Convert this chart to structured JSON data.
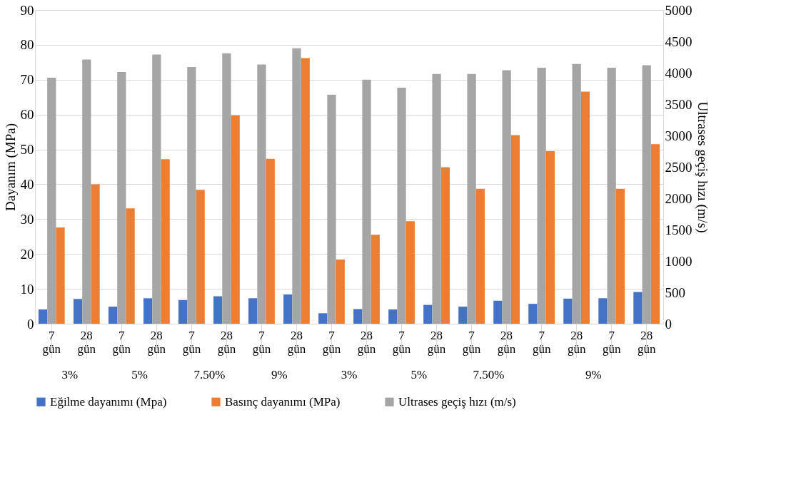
{
  "chart_data": {
    "type": "bar",
    "categories": [
      "7 gün",
      "28 gün",
      "7 gün",
      "28 gün",
      "7 gün",
      "28 gün",
      "7 gün",
      "28 gün",
      "7 gün",
      "28 gün",
      "7 gün",
      "28 gün",
      "7 gün",
      "28 gün",
      "7 gün",
      "28 gün",
      "7 gün",
      "28 gün"
    ],
    "annotations": [
      "3%",
      "5%",
      "7.50%",
      "9%",
      "3%",
      "5%",
      "7.50%",
      "9%"
    ],
    "series": [
      {
        "name": "Eğilme dayanımı (Mpa)",
        "color": "#4472c4",
        "values": [
          4.1,
          7.1,
          4.9,
          7.3,
          6.8,
          7.9,
          7.3,
          8.4,
          3.0,
          4.2,
          4.1,
          5.4,
          4.9,
          6.6,
          5.7,
          7.2,
          7.3,
          9.1
        ]
      },
      {
        "name": "Basınç dayanımı (MPa)",
        "color": "#ed7d31",
        "values": [
          27.6,
          40.0,
          33.1,
          47.2,
          38.4,
          59.8,
          47.3,
          76.2,
          18.4,
          25.5,
          29.4,
          44.9,
          38.7,
          54.1,
          49.5,
          66.6,
          38.7,
          51.5
        ]
      },
      {
        "name": "Ultrases geçiş hızı (m/s)",
        "color": "#a5a5a5",
        "axis": "y2",
        "values": [
          3920,
          4210,
          4010,
          4290,
          4090,
          4310,
          4130,
          4390,
          3650,
          3890,
          3760,
          3980,
          3980,
          4040,
          4080,
          4140,
          4080,
          4120
        ]
      }
    ],
    "ylabel": "Dayanım (MPa)",
    "y2label": "Ultrases geçiş hızı (m/s)",
    "ylim": [
      0,
      90
    ],
    "yticks": [
      0,
      10,
      20,
      30,
      40,
      50,
      60,
      70,
      80,
      90
    ],
    "y2lim": [
      0,
      5000
    ],
    "y2ticks": [
      0,
      500,
      1000,
      1500,
      2000,
      2500,
      3000,
      3500,
      4000,
      4500,
      5000
    ],
    "grid": "y",
    "legend": "bottom"
  }
}
